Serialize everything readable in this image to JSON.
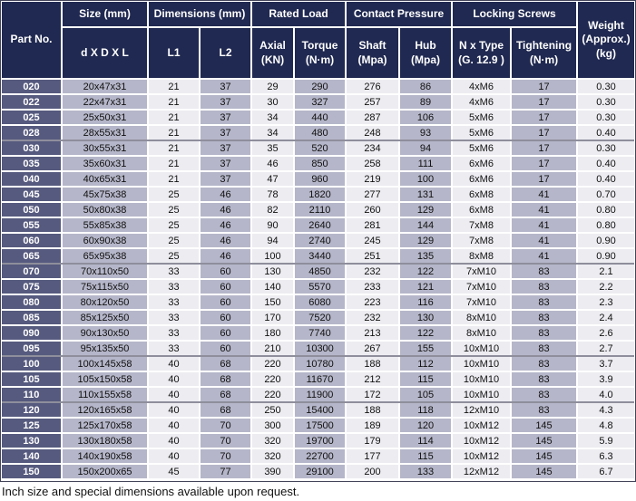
{
  "colors": {
    "header_navy": "#202951",
    "part_cell_slate": "#565a7e",
    "shade_lavender": "#b5b6c9",
    "shade_light": "#ececf1",
    "group_separator_gray": "#8e8e9c"
  },
  "table": {
    "header": {
      "part_no": "Part No.",
      "size_group": "Size (mm)",
      "size_sub": "d X D X L",
      "dims_group": "Dimensions (mm)",
      "l1": "L1",
      "l2": "L2",
      "rated_group": "Rated Load",
      "axial": "Axial\n(KN)",
      "torque": "Torque\n(N·m)",
      "contact_group": "Contact Pressure",
      "shaft": "Shaft\n(Mpa)",
      "hub": "Hub\n(Mpa)",
      "locking_group": "Locking Screws",
      "n_x_type": "N x Type\n(G. 12.9 )",
      "tightening": "Tightening\n(N·m)",
      "weight": "Weight\n(Approx.)\n(kg)"
    },
    "column_keys": [
      "part_no",
      "size",
      "l1",
      "l2",
      "axial_kn",
      "torque_nm",
      "shaft_mpa",
      "hub_mpa",
      "n_x_type",
      "tightening_nm",
      "weight_kg"
    ],
    "rows": [
      [
        "020",
        "20x47x31",
        "21",
        "37",
        "29",
        "290",
        "276",
        "86",
        "4xM6",
        "17",
        "0.30"
      ],
      [
        "022",
        "22x47x31",
        "21",
        "37",
        "30",
        "327",
        "257",
        "89",
        "4xM6",
        "17",
        "0.30"
      ],
      [
        "025",
        "25x50x31",
        "21",
        "37",
        "34",
        "440",
        "287",
        "106",
        "5xM6",
        "17",
        "0.30"
      ],
      [
        "028",
        "28x55x31",
        "21",
        "37",
        "34",
        "480",
        "248",
        "93",
        "5xM6",
        "17",
        "0.40"
      ],
      [
        "030",
        "30x55x31",
        "21",
        "37",
        "35",
        "520",
        "234",
        "94",
        "5xM6",
        "17",
        "0.30"
      ],
      [
        "035",
        "35x60x31",
        "21",
        "37",
        "46",
        "850",
        "258",
        "111",
        "6xM6",
        "17",
        "0.40"
      ],
      [
        "040",
        "40x65x31",
        "21",
        "37",
        "47",
        "960",
        "219",
        "100",
        "6xM6",
        "17",
        "0.40"
      ],
      [
        "045",
        "45x75x38",
        "25",
        "46",
        "78",
        "1820",
        "277",
        "131",
        "6xM8",
        "41",
        "0.70"
      ],
      [
        "050",
        "50x80x38",
        "25",
        "46",
        "82",
        "2110",
        "260",
        "129",
        "6xM8",
        "41",
        "0.80"
      ],
      [
        "055",
        "55x85x38",
        "25",
        "46",
        "90",
        "2640",
        "281",
        "144",
        "7xM8",
        "41",
        "0.80"
      ],
      [
        "060",
        "60x90x38",
        "25",
        "46",
        "94",
        "2740",
        "245",
        "129",
        "7xM8",
        "41",
        "0.90"
      ],
      [
        "065",
        "65x95x38",
        "25",
        "46",
        "100",
        "3440",
        "251",
        "135",
        "8xM8",
        "41",
        "0.90"
      ],
      [
        "070",
        "70x110x50",
        "33",
        "60",
        "130",
        "4850",
        "232",
        "122",
        "7xM10",
        "83",
        "2.1"
      ],
      [
        "075",
        "75x115x50",
        "33",
        "60",
        "140",
        "5570",
        "233",
        "121",
        "7xM10",
        "83",
        "2.2"
      ],
      [
        "080",
        "80x120x50",
        "33",
        "60",
        "150",
        "6080",
        "223",
        "116",
        "7xM10",
        "83",
        "2.3"
      ],
      [
        "085",
        "85x125x50",
        "33",
        "60",
        "170",
        "7520",
        "232",
        "130",
        "8xM10",
        "83",
        "2.4"
      ],
      [
        "090",
        "90x130x50",
        "33",
        "60",
        "180",
        "7740",
        "213",
        "122",
        "8xM10",
        "83",
        "2.6"
      ],
      [
        "095",
        "95x135x50",
        "33",
        "60",
        "210",
        "10300",
        "267",
        "155",
        "10xM10",
        "83",
        "2.7"
      ],
      [
        "100",
        "100x145x58",
        "40",
        "68",
        "220",
        "10780",
        "188",
        "112",
        "10xM10",
        "83",
        "3.7"
      ],
      [
        "105",
        "105x150x58",
        "40",
        "68",
        "220",
        "11670",
        "212",
        "115",
        "10xM10",
        "83",
        "3.9"
      ],
      [
        "110",
        "110x155x58",
        "40",
        "68",
        "220",
        "11900",
        "172",
        "105",
        "10xM10",
        "83",
        "4.0"
      ],
      [
        "120",
        "120x165x58",
        "40",
        "68",
        "250",
        "15400",
        "188",
        "118",
        "12xM10",
        "83",
        "4.3"
      ],
      [
        "125",
        "125x170x58",
        "40",
        "70",
        "300",
        "17500",
        "189",
        "120",
        "10xM12",
        "145",
        "4.8"
      ],
      [
        "130",
        "130x180x58",
        "40",
        "70",
        "320",
        "19700",
        "179",
        "114",
        "10xM12",
        "145",
        "5.9"
      ],
      [
        "140",
        "140x190x58",
        "40",
        "70",
        "320",
        "22700",
        "177",
        "115",
        "10xM12",
        "145",
        "6.3"
      ],
      [
        "150",
        "150x200x65",
        "45",
        "77",
        "390",
        "29100",
        "200",
        "133",
        "12xM12",
        "145",
        "6.7"
      ]
    ],
    "group_break_after": [
      "028",
      "065",
      "095",
      "110"
    ]
  },
  "footer": {
    "note": "Inch size and special dimensions available upon request."
  }
}
